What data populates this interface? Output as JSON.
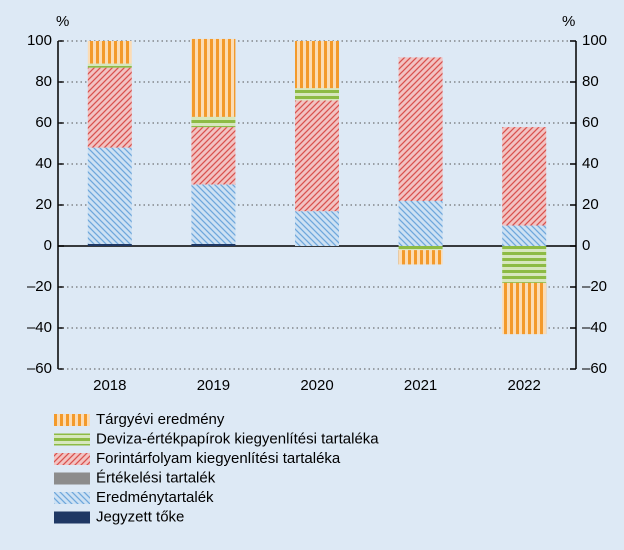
{
  "chart_data": {
    "type": "stacked_bar",
    "y_unit": "%",
    "y2_unit": "%",
    "categories": [
      "2018",
      "2019",
      "2020",
      "2021",
      "2022"
    ],
    "series": [
      {
        "name": "Tárgyévi eredmény",
        "color": "#f39a2b",
        "hatch": "vertical",
        "values": [
          11,
          38,
          23,
          -7,
          -25
        ]
      },
      {
        "name": "Deviza-értékpapírok kiegyenlítési tartaléka",
        "color": "#8dbb45",
        "hatch": "horizontal",
        "values": [
          2,
          5,
          6,
          -2,
          -18
        ]
      },
      {
        "name": "Forintárfolyam kiegyenlítési tartaléka",
        "color": "#d9534f",
        "hatch": "diagonal",
        "values": [
          39,
          28,
          54,
          70,
          48
        ]
      },
      {
        "name": "Értékelési tartalék",
        "color": "#8c8c8c",
        "hatch": "solid",
        "values": [
          0,
          0,
          0,
          0,
          0
        ]
      },
      {
        "name": "Eredménytartalék",
        "color": "#6fa8dc",
        "hatch": "antidiagonal",
        "values": [
          47,
          29,
          17,
          22,
          10
        ]
      },
      {
        "name": "Jegyzett tőke",
        "color": "#1f3864",
        "hatch": "solid",
        "values": [
          1,
          1,
          0,
          0,
          0
        ]
      }
    ],
    "ylim": [
      -60,
      100
    ],
    "yticks": [
      {
        "value": -60,
        "label": "–60"
      },
      {
        "value": -40,
        "label": "–40"
      },
      {
        "value": -20,
        "label": "–20"
      },
      0,
      20,
      40,
      60,
      80,
      100
    ],
    "y2lim": [
      -60,
      100
    ],
    "y2ticks": [
      {
        "value": -60,
        "label": "–60"
      },
      {
        "value": -40,
        "label": "–40"
      },
      {
        "value": -20,
        "label": "–20"
      },
      0,
      20,
      40,
      60,
      80,
      100
    ],
    "grid": true
  }
}
